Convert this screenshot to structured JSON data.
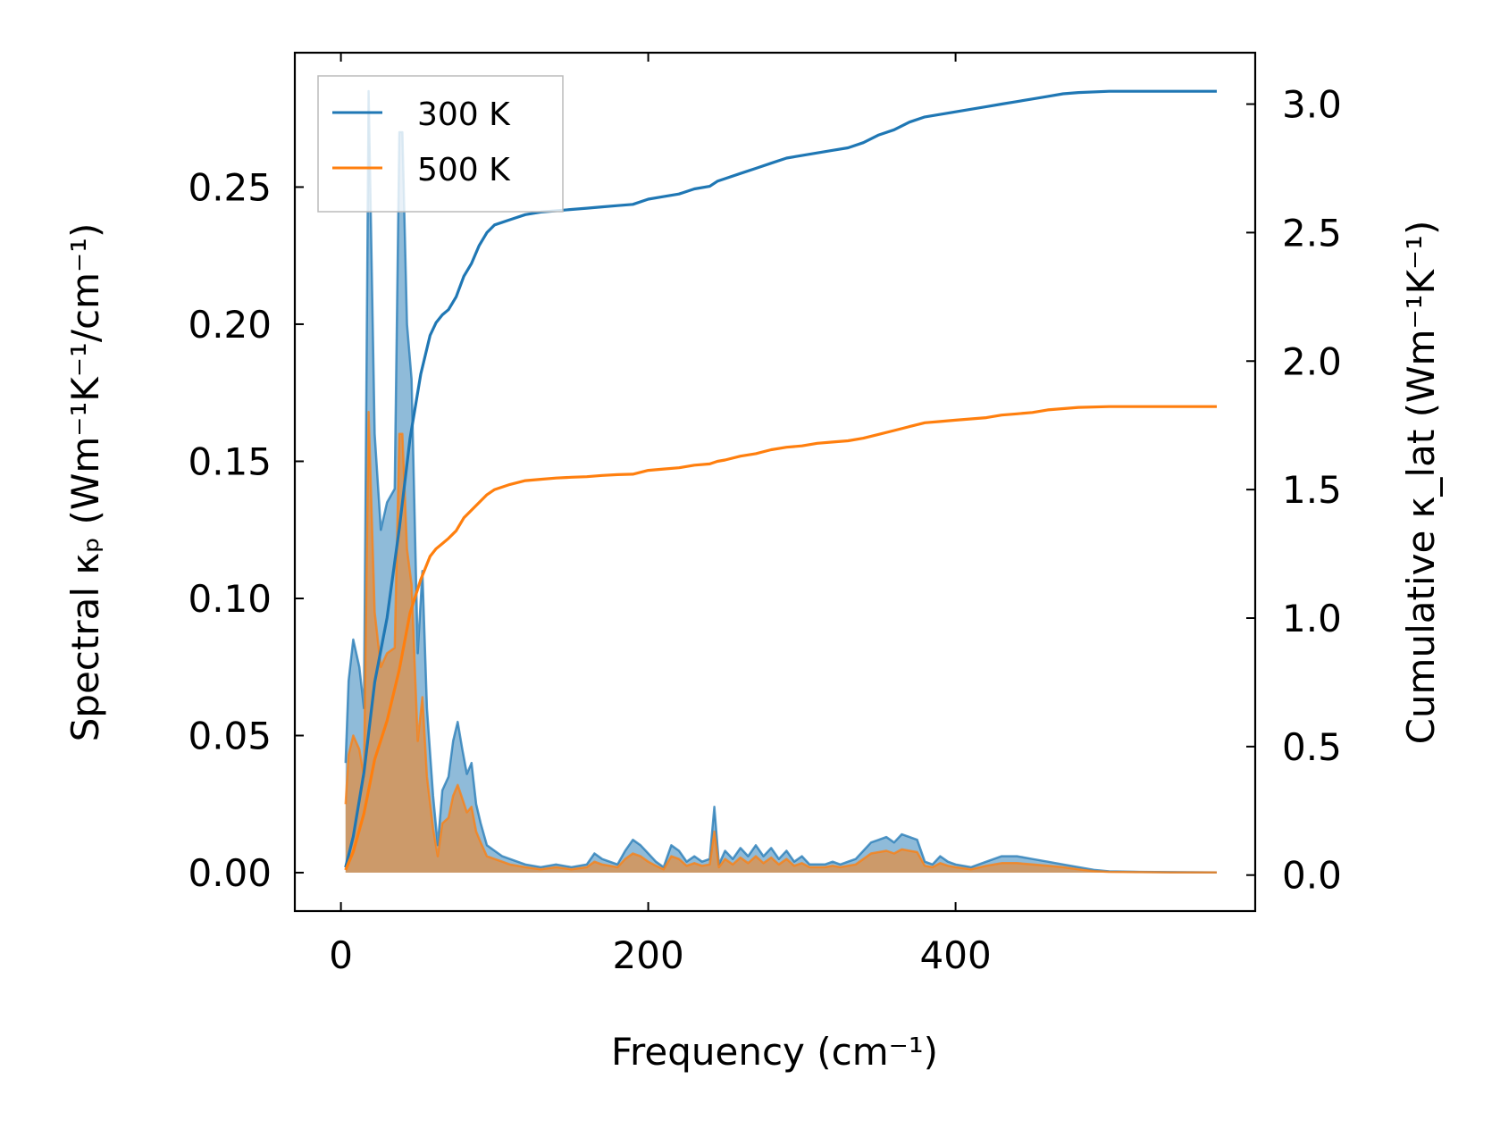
{
  "chart_data": {
    "type": "line",
    "xlabel": "Frequency (cm⁻¹)",
    "ylabel_left": "Spectral κₚ (Wm⁻¹K⁻¹/cm⁻¹)",
    "ylabel_right": "Cumulative κ_lat (Wm⁻¹K⁻¹)",
    "xlim": [
      -30,
      595
    ],
    "ylim_left": [
      -0.014,
      0.299
    ],
    "ylim_right": [
      -0.14,
      3.2
    ],
    "x_ticks": [
      0,
      200,
      400
    ],
    "x_tick_labels": [
      "0",
      "200",
      "400"
    ],
    "y_left_ticks": [
      0.0,
      0.05,
      0.1,
      0.15,
      0.2,
      0.25
    ],
    "y_left_tick_labels": [
      "0.00",
      "0.05",
      "0.10",
      "0.15",
      "0.20",
      "0.25"
    ],
    "y_right_ticks": [
      0.0,
      0.5,
      1.0,
      1.5,
      2.0,
      2.5,
      3.0
    ],
    "y_right_tick_labels": [
      "0.0",
      "0.5",
      "1.0",
      "1.5",
      "2.0",
      "2.5",
      "3.0"
    ],
    "grid": false,
    "legend_position": "top-left",
    "series": [
      {
        "name": "300 K",
        "color": "#1f77b4",
        "spectral": {
          "x": [
            3,
            5,
            8,
            12,
            15,
            18,
            22,
            26,
            30,
            35,
            38,
            40,
            43,
            46,
            50,
            53,
            56,
            60,
            63,
            66,
            70,
            73,
            76,
            79,
            82,
            85,
            88,
            91,
            95,
            100,
            105,
            110,
            120,
            130,
            140,
            150,
            160,
            165,
            170,
            180,
            185,
            190,
            195,
            200,
            205,
            210,
            215,
            220,
            225,
            230,
            235,
            240,
            243,
            246,
            250,
            255,
            260,
            265,
            270,
            275,
            280,
            285,
            290,
            295,
            300,
            305,
            310,
            315,
            320,
            325,
            330,
            335,
            340,
            345,
            350,
            355,
            360,
            365,
            370,
            375,
            380,
            385,
            390,
            395,
            400,
            410,
            420,
            430,
            440,
            450,
            460,
            470,
            480,
            490,
            500,
            520,
            540,
            570
          ],
          "y": [
            0.04,
            0.07,
            0.085,
            0.075,
            0.06,
            0.285,
            0.16,
            0.125,
            0.135,
            0.14,
            0.27,
            0.27,
            0.2,
            0.18,
            0.08,
            0.11,
            0.06,
            0.028,
            0.01,
            0.03,
            0.035,
            0.048,
            0.055,
            0.045,
            0.036,
            0.04,
            0.025,
            0.018,
            0.01,
            0.008,
            0.006,
            0.005,
            0.003,
            0.002,
            0.003,
            0.002,
            0.003,
            0.007,
            0.005,
            0.003,
            0.008,
            0.012,
            0.01,
            0.007,
            0.004,
            0.002,
            0.01,
            0.008,
            0.004,
            0.006,
            0.004,
            0.005,
            0.024,
            0.003,
            0.008,
            0.005,
            0.009,
            0.006,
            0.01,
            0.006,
            0.009,
            0.005,
            0.008,
            0.004,
            0.006,
            0.003,
            0.003,
            0.003,
            0.004,
            0.003,
            0.004,
            0.005,
            0.008,
            0.011,
            0.012,
            0.013,
            0.011,
            0.014,
            0.013,
            0.012,
            0.004,
            0.003,
            0.006,
            0.004,
            0.003,
            0.002,
            0.004,
            0.006,
            0.006,
            0.005,
            0.004,
            0.003,
            0.002,
            0.001,
            0.0005,
            0.0003,
            0.0002,
            0.0001
          ]
        },
        "cumulative": {
          "x": [
            3,
            8,
            15,
            22,
            30,
            38,
            45,
            52,
            58,
            62,
            66,
            70,
            75,
            80,
            85,
            90,
            95,
            100,
            110,
            120,
            130,
            140,
            150,
            160,
            170,
            180,
            190,
            200,
            210,
            220,
            230,
            240,
            245,
            250,
            260,
            270,
            280,
            290,
            300,
            310,
            320,
            330,
            340,
            350,
            360,
            370,
            380,
            390,
            400,
            410,
            420,
            430,
            440,
            450,
            460,
            470,
            480,
            500,
            520,
            540,
            570
          ],
          "y": [
            0.03,
            0.15,
            0.4,
            0.75,
            1.0,
            1.35,
            1.7,
            1.95,
            2.1,
            2.15,
            2.18,
            2.2,
            2.25,
            2.33,
            2.38,
            2.45,
            2.5,
            2.53,
            2.55,
            2.57,
            2.58,
            2.585,
            2.59,
            2.595,
            2.6,
            2.605,
            2.61,
            2.63,
            2.64,
            2.65,
            2.67,
            2.68,
            2.7,
            2.71,
            2.73,
            2.75,
            2.77,
            2.79,
            2.8,
            2.81,
            2.82,
            2.83,
            2.85,
            2.88,
            2.9,
            2.93,
            2.95,
            2.96,
            2.97,
            2.98,
            2.99,
            3.0,
            3.01,
            3.02,
            3.03,
            3.04,
            3.045,
            3.05,
            3.05,
            3.05,
            3.05
          ]
        }
      },
      {
        "name": "500 K",
        "color": "#ff7f0e",
        "spectral": {
          "x": [
            3,
            5,
            8,
            12,
            15,
            18,
            22,
            26,
            30,
            35,
            38,
            40,
            43,
            46,
            50,
            53,
            56,
            60,
            63,
            66,
            70,
            73,
            76,
            79,
            82,
            85,
            88,
            91,
            95,
            100,
            105,
            110,
            120,
            130,
            140,
            150,
            160,
            165,
            170,
            180,
            185,
            190,
            195,
            200,
            205,
            210,
            215,
            220,
            225,
            230,
            235,
            240,
            243,
            246,
            250,
            255,
            260,
            265,
            270,
            275,
            280,
            285,
            290,
            295,
            300,
            305,
            310,
            315,
            320,
            325,
            330,
            335,
            340,
            345,
            350,
            355,
            360,
            365,
            370,
            375,
            380,
            385,
            390,
            395,
            400,
            410,
            420,
            430,
            440,
            450,
            460,
            470,
            480,
            490,
            500,
            520,
            540,
            570
          ],
          "y": [
            0.025,
            0.043,
            0.05,
            0.045,
            0.035,
            0.168,
            0.095,
            0.075,
            0.08,
            0.082,
            0.16,
            0.16,
            0.118,
            0.105,
            0.048,
            0.064,
            0.035,
            0.016,
            0.006,
            0.018,
            0.02,
            0.028,
            0.032,
            0.027,
            0.022,
            0.024,
            0.015,
            0.011,
            0.006,
            0.005,
            0.004,
            0.003,
            0.002,
            0.0012,
            0.002,
            0.0012,
            0.002,
            0.004,
            0.003,
            0.002,
            0.005,
            0.007,
            0.006,
            0.004,
            0.0025,
            0.0012,
            0.006,
            0.005,
            0.0025,
            0.0035,
            0.0025,
            0.003,
            0.015,
            0.002,
            0.005,
            0.003,
            0.0055,
            0.0035,
            0.006,
            0.0035,
            0.0055,
            0.003,
            0.005,
            0.0025,
            0.0035,
            0.002,
            0.002,
            0.002,
            0.0025,
            0.002,
            0.0025,
            0.003,
            0.005,
            0.007,
            0.0075,
            0.008,
            0.007,
            0.0085,
            0.008,
            0.0075,
            0.0025,
            0.002,
            0.0035,
            0.0025,
            0.002,
            0.0012,
            0.0025,
            0.0035,
            0.0035,
            0.003,
            0.0025,
            0.002,
            0.0012,
            0.0006,
            0.0003,
            0.0002,
            0.0001,
            0.0001
          ]
        },
        "cumulative": {
          "x": [
            3,
            8,
            15,
            22,
            30,
            38,
            45,
            52,
            58,
            62,
            66,
            70,
            75,
            80,
            85,
            90,
            95,
            100,
            110,
            120,
            130,
            140,
            150,
            160,
            170,
            180,
            190,
            200,
            210,
            220,
            230,
            240,
            245,
            250,
            260,
            270,
            280,
            290,
            300,
            310,
            320,
            330,
            340,
            350,
            360,
            370,
            380,
            390,
            400,
            410,
            420,
            430,
            440,
            450,
            460,
            470,
            480,
            500,
            520,
            540,
            570
          ],
          "y": [
            0.02,
            0.09,
            0.24,
            0.45,
            0.6,
            0.8,
            1.02,
            1.15,
            1.24,
            1.27,
            1.29,
            1.31,
            1.34,
            1.39,
            1.42,
            1.45,
            1.48,
            1.5,
            1.52,
            1.535,
            1.54,
            1.545,
            1.548,
            1.55,
            1.555,
            1.558,
            1.56,
            1.575,
            1.58,
            1.585,
            1.595,
            1.6,
            1.61,
            1.615,
            1.63,
            1.64,
            1.655,
            1.665,
            1.67,
            1.68,
            1.685,
            1.69,
            1.7,
            1.715,
            1.73,
            1.745,
            1.76,
            1.765,
            1.77,
            1.775,
            1.78,
            1.79,
            1.795,
            1.8,
            1.81,
            1.815,
            1.82,
            1.823,
            1.823,
            1.823,
            1.823
          ]
        }
      }
    ]
  }
}
